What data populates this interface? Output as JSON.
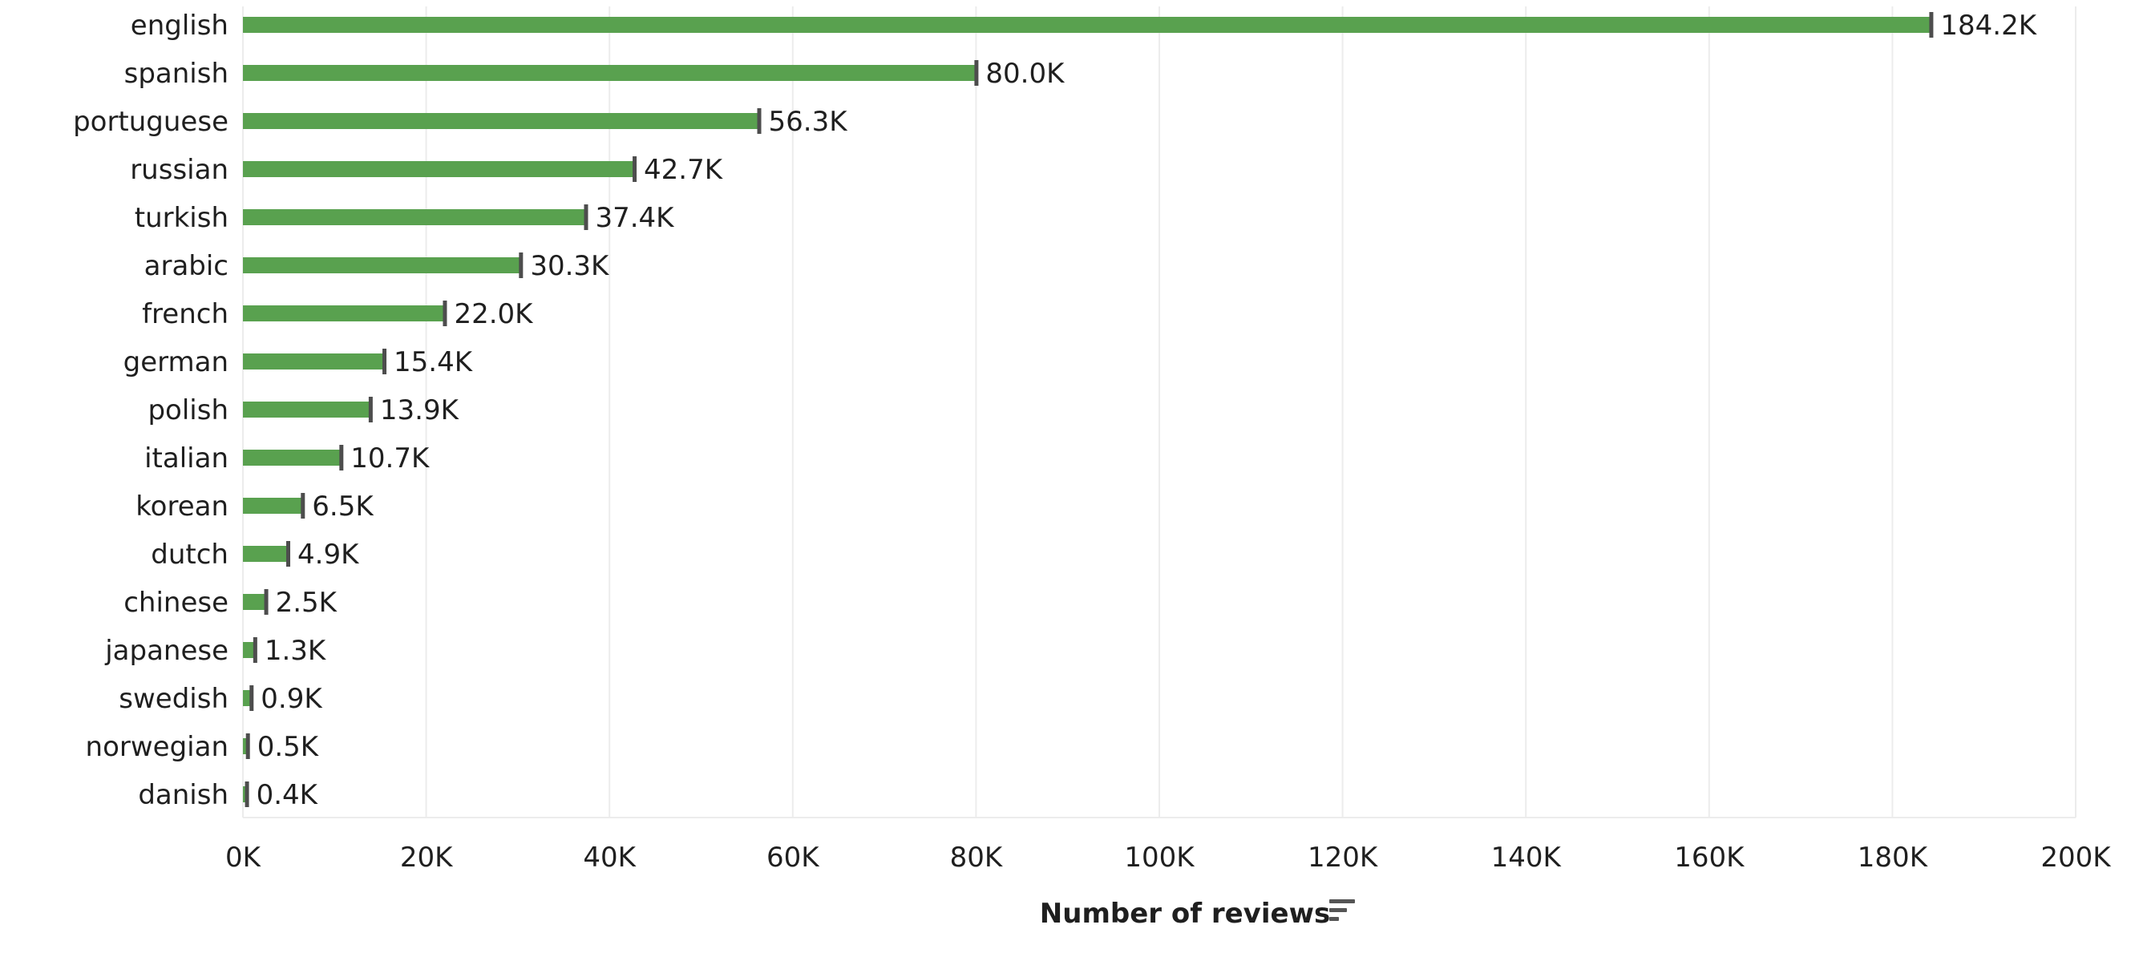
{
  "chart_data": {
    "type": "bar",
    "orientation": "horizontal",
    "categories": [
      "english",
      "spanish",
      "portuguese",
      "russian",
      "turkish",
      "arabic",
      "french",
      "german",
      "polish",
      "italian",
      "korean",
      "dutch",
      "chinese",
      "japanese",
      "swedish",
      "norwegian",
      "danish"
    ],
    "values": [
      184200,
      80000,
      56300,
      42700,
      37400,
      30300,
      22000,
      15400,
      13900,
      10700,
      6500,
      4900,
      2500,
      1300,
      900,
      500,
      400
    ],
    "data_labels": [
      "184.2K",
      "80.0K",
      "56.3K",
      "42.7K",
      "37.4K",
      "30.3K",
      "22.0K",
      "15.4K",
      "13.9K",
      "10.7K",
      "6.5K",
      "4.9K",
      "2.5K",
      "1.3K",
      "0.9K",
      "0.5K",
      "0.4K"
    ],
    "xlabel": "Number of reviews",
    "ylabel": "",
    "xlim": [
      0,
      200000
    ],
    "x_ticks": [
      0,
      20000,
      40000,
      60000,
      80000,
      100000,
      120000,
      140000,
      160000,
      180000,
      200000
    ],
    "x_tick_labels": [
      "0K",
      "20K",
      "40K",
      "60K",
      "80K",
      "100K",
      "120K",
      "140K",
      "160K",
      "180K",
      "200K"
    ],
    "grid": true,
    "legend": "none",
    "colors": {
      "bar": "#59a14f",
      "bar_cap": "#4d4d4d",
      "grid": "#ececec",
      "text": "#1f1f1f"
    }
  },
  "axis": {
    "title": "Number of reviews",
    "sort_icon": "sort-descending-icon"
  }
}
